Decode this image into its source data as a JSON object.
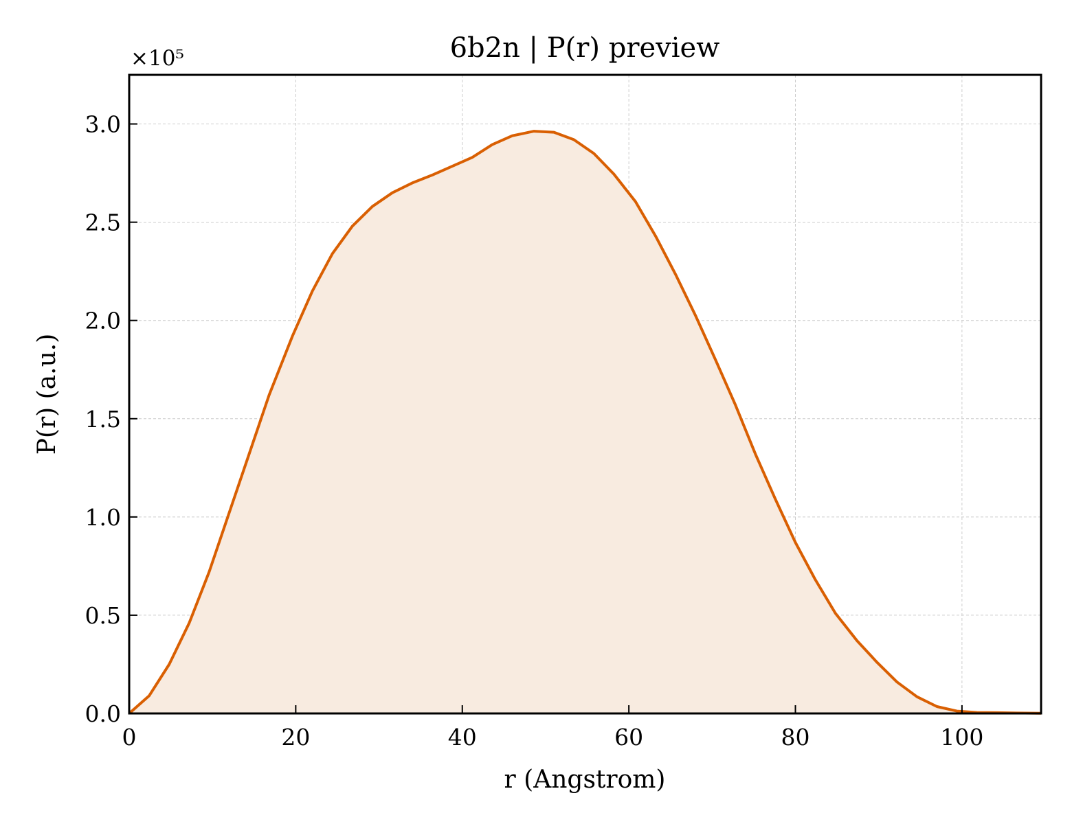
{
  "chart_data": {
    "type": "area",
    "title": "6b2n | P(r) preview",
    "xlabel": "r (Angstrom)",
    "ylabel": "P(r) (a.u.)",
    "y_multiplier": "×10⁵",
    "xlim": [
      0,
      109.5
    ],
    "ylim": [
      0,
      3.25
    ],
    "x_ticks": [
      0,
      20,
      40,
      60,
      80,
      100
    ],
    "x_tick_labels": [
      "0",
      "20",
      "40",
      "60",
      "80",
      "100"
    ],
    "y_ticks": [
      0,
      0.5,
      1.0,
      1.5,
      2.0,
      2.5,
      3.0
    ],
    "y_tick_labels": [
      "0.0",
      "0.5",
      "1.0",
      "1.5",
      "2.0",
      "2.5",
      "3.0"
    ],
    "grid": true,
    "series": [
      {
        "color": "#d95f02",
        "fill_color": "#f8ebe0",
        "x": [
          0,
          2.4,
          4.8,
          7.2,
          9.6,
          12.0,
          14.4,
          16.8,
          19.6,
          22.0,
          24.4,
          26.8,
          29.2,
          31.6,
          34.0,
          36.4,
          38.8,
          41.2,
          43.6,
          46.0,
          48.6,
          51.0,
          53.4,
          55.8,
          58.2,
          60.8,
          63.2,
          65.6,
          68.0,
          70.4,
          72.8,
          75.2,
          77.6,
          80.0,
          82.4,
          84.8,
          87.4,
          89.8,
          92.2,
          94.6,
          97.0,
          99.4,
          101.8,
          104.2,
          106.6,
          109.5
        ],
        "values": [
          0.0,
          0.09,
          0.25,
          0.46,
          0.72,
          1.02,
          1.32,
          1.62,
          1.92,
          2.15,
          2.34,
          2.48,
          2.58,
          2.65,
          2.7,
          2.74,
          2.785,
          2.83,
          2.895,
          2.94,
          2.963,
          2.958,
          2.92,
          2.85,
          2.745,
          2.605,
          2.43,
          2.235,
          2.025,
          1.8,
          1.57,
          1.32,
          1.09,
          0.87,
          0.68,
          0.51,
          0.37,
          0.26,
          0.16,
          0.085,
          0.035,
          0.012,
          0.005,
          0.004,
          0.002,
          0.001
        ]
      }
    ]
  }
}
